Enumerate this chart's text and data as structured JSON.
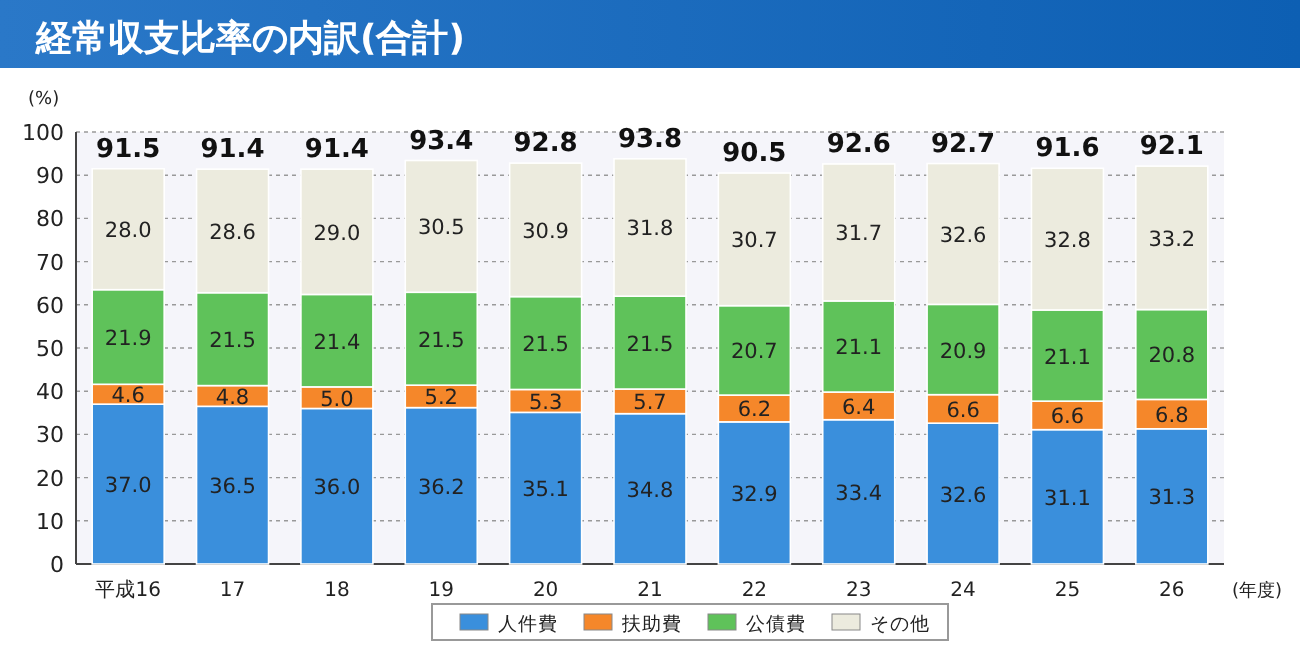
{
  "chart_data": {
    "type": "bar",
    "stacked": true,
    "title": "経常収支比率の内訳(合計)",
    "ylabel": "(%)",
    "xlabel": "(年度)",
    "categories": [
      "平成16",
      "17",
      "18",
      "19",
      "20",
      "21",
      "22",
      "23",
      "24",
      "25",
      "26"
    ],
    "series": [
      {
        "name": "人件費",
        "color": "#3a8fdc",
        "values": [
          37.0,
          36.5,
          36.0,
          36.2,
          35.1,
          34.8,
          32.9,
          33.4,
          32.6,
          31.1,
          31.3
        ],
        "value_labels": [
          "37.0",
          "36.5",
          "36.0",
          "36.2",
          "35.1",
          "34.8",
          "32.9",
          "33.4",
          "32.6",
          "31.1",
          "31.3"
        ]
      },
      {
        "name": "扶助費",
        "color": "#f5872a",
        "values": [
          4.6,
          4.8,
          5.0,
          5.2,
          5.3,
          5.7,
          6.2,
          6.4,
          6.6,
          6.6,
          6.8
        ],
        "value_labels": [
          "4.6",
          "4.8",
          "5.0",
          "5.2",
          "5.3",
          "5.7",
          "6.2",
          "6.4",
          "6.6",
          "6.6",
          "6.8"
        ]
      },
      {
        "name": "公債費",
        "color": "#5fc25a",
        "values": [
          21.9,
          21.5,
          21.4,
          21.5,
          21.5,
          21.5,
          20.7,
          21.1,
          20.9,
          21.1,
          20.8
        ],
        "value_labels": [
          "21.9",
          "21.5",
          "21.4",
          "21.5",
          "21.5",
          "21.5",
          "20.7",
          "21.1",
          "20.9",
          "21.1",
          "20.8"
        ]
      },
      {
        "name": "その他",
        "color": "#ecebde",
        "values": [
          28.0,
          28.6,
          29.0,
          30.5,
          30.9,
          31.8,
          30.7,
          31.7,
          32.6,
          32.8,
          33.2
        ],
        "value_labels": [
          "28.0",
          "28.6",
          "29.0",
          "30.5",
          "30.9",
          "31.8",
          "30.7",
          "31.7",
          "32.6",
          "32.8",
          "33.2"
        ]
      }
    ],
    "totals": [
      "91.5",
      "91.4",
      "91.4",
      "93.4",
      "92.8",
      "93.8",
      "90.5",
      "92.6",
      "92.7",
      "91.6",
      "92.1"
    ],
    "ylim": [
      0,
      100
    ],
    "yticks": [
      0,
      10,
      20,
      30,
      40,
      50,
      60,
      70,
      80,
      90,
      100
    ],
    "grid": "y",
    "legend": "bottom"
  }
}
